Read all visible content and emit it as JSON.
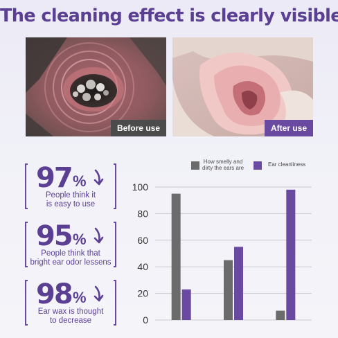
{
  "headline": "The cleaning effect is clearly visible",
  "photos": {
    "before_label": "Before use",
    "after_label": "After use"
  },
  "stats": [
    {
      "value": "97",
      "unit": "%",
      "caption_line1": "People think it",
      "caption_line2": "is easy to use"
    },
    {
      "value": "95",
      "unit": "%",
      "caption_line1": "People think that",
      "caption_line2": "bright ear odor lessens"
    },
    {
      "value": "98",
      "unit": "%",
      "caption_line1": "Ear wax is thought",
      "caption_line2": "to decrease"
    }
  ],
  "chart_data": {
    "type": "bar",
    "categories": [
      "",
      "",
      ""
    ],
    "series": [
      {
        "name": "How smelly and dirty the ears are",
        "color": "#6b6b6b",
        "values": [
          95,
          45,
          7
        ]
      },
      {
        "name": "Ear cleanliness",
        "color": "#6a4aa0",
        "values": [
          23,
          55,
          98
        ]
      }
    ],
    "legend": {
      "line1": "How smelly and",
      "line2": "dirty the ears are",
      "label2": "Ear cleanliness",
      "placement": "top"
    },
    "yticks": [
      0,
      20,
      40,
      60,
      80,
      100
    ],
    "ylim": [
      0,
      100
    ],
    "grid": true,
    "title": "",
    "xlabel": "",
    "ylabel": ""
  }
}
